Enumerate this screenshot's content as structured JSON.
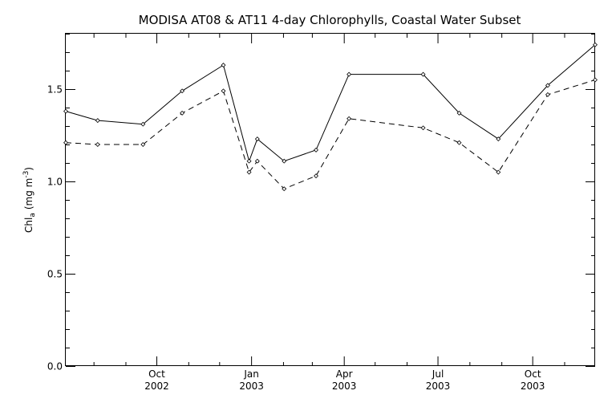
{
  "chart_data": {
    "type": "line",
    "title": "MODISA AT08 & AT11 4-day Chlorophylls, Coastal Water Subset",
    "xlabel": "",
    "ylabel": "Chl",
    "ylabel_sub": "a",
    "ylabel_units": "(mg m",
    "ylabel_units_sup": "-3",
    "ylabel_units_end": ")",
    "xlim": [
      "2002-07-05",
      "2003-12-01"
    ],
    "ylim": [
      0.0,
      1.8
    ],
    "grid": false,
    "legend": "none",
    "y_ticks": [
      {
        "value": 0.0,
        "label": "0.0"
      },
      {
        "value": 0.5,
        "label": "0.5"
      },
      {
        "value": 1.0,
        "label": "1.0"
      },
      {
        "value": 1.5,
        "label": "1.5"
      }
    ],
    "y_minor_step": 0.1,
    "x_ticks": [
      {
        "date": "2002-10-01",
        "month": "Oct",
        "year": "2002"
      },
      {
        "date": "2003-01-01",
        "month": "Jan",
        "year": "2003"
      },
      {
        "date": "2003-04-01",
        "month": "Apr",
        "year": "2003"
      },
      {
        "date": "2003-07-01",
        "month": "Jul",
        "year": "2003"
      },
      {
        "date": "2003-10-01",
        "month": "Oct",
        "year": "2003"
      }
    ],
    "x_minor_ticks": [
      "2002-08-01",
      "2002-09-01",
      "2002-11-01",
      "2002-12-01",
      "2003-02-01",
      "2003-03-01",
      "2003-05-01",
      "2003-06-01",
      "2003-08-01",
      "2003-09-01",
      "2003-11-01"
    ],
    "series": [
      {
        "style": "solid",
        "x": [
          "2002-07-05",
          "2002-08-05",
          "2002-09-18",
          "2002-10-26",
          "2002-12-05",
          "2002-12-30",
          "2003-01-07",
          "2003-02-02",
          "2003-03-05",
          "2003-04-06",
          "2003-06-17",
          "2003-07-22",
          "2003-08-29",
          "2003-10-16",
          "2003-12-01"
        ],
        "values": [
          1.38,
          1.33,
          1.31,
          1.49,
          1.63,
          1.11,
          1.23,
          1.11,
          1.17,
          1.58,
          1.58,
          1.37,
          1.23,
          1.52,
          1.74
        ]
      },
      {
        "style": "dashed",
        "x": [
          "2002-07-05",
          "2002-08-05",
          "2002-09-18",
          "2002-10-26",
          "2002-12-05",
          "2002-12-30",
          "2003-01-07",
          "2003-02-02",
          "2003-03-05",
          "2003-04-06",
          "2003-06-17",
          "2003-07-22",
          "2003-08-29",
          "2003-10-16",
          "2003-12-01"
        ],
        "values": [
          1.21,
          1.2,
          1.2,
          1.37,
          1.49,
          1.05,
          1.11,
          0.96,
          1.03,
          1.34,
          1.29,
          1.21,
          1.05,
          1.47,
          1.55
        ]
      }
    ]
  }
}
